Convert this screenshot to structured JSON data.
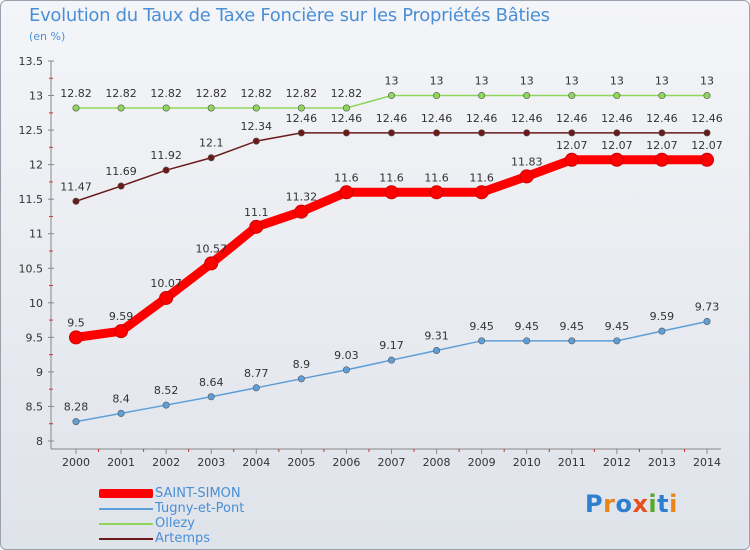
{
  "title": "Evolution du Taux de Taxe Foncière sur les Propriétés Bâties",
  "unit": "(en %)",
  "logo": "Proxiti",
  "chart_data": {
    "type": "line",
    "title": "Evolution du Taux de Taxe Foncière sur les Propriétés Bâties",
    "ylabel": "(en %)",
    "xlabel": "",
    "ylim": [
      8,
      13.5
    ],
    "yticks": [
      "8",
      "8.5",
      "9",
      "9.5",
      "10",
      "10.5",
      "11",
      "11.5",
      "12",
      "12.5",
      "13",
      "13.5"
    ],
    "x": [
      "2000",
      "2001",
      "2002",
      "2003",
      "2004",
      "2005",
      "2006",
      "2007",
      "2008",
      "2009",
      "2010",
      "2011",
      "2012",
      "2013",
      "2014"
    ],
    "legend_position": "bottom-left",
    "series": [
      {
        "name": "Artemps",
        "color": "#6b1a1a",
        "values": [
          11.47,
          11.69,
          11.92,
          12.1,
          12.34,
          12.46,
          12.46,
          12.46,
          12.46,
          12.46,
          12.46,
          12.46,
          12.46,
          12.46,
          12.46
        ],
        "labels": [
          "11.47",
          "11.69",
          "11.92",
          "12.1",
          "12.34",
          "12.46",
          "12.46",
          "12.46",
          "12.46",
          "12.46",
          "12.46",
          "12.46",
          "12.46",
          "12.46",
          "12.46"
        ]
      },
      {
        "name": "Ollezy",
        "color": "#8fd65a",
        "values": [
          12.82,
          12.82,
          12.82,
          12.82,
          12.82,
          12.82,
          12.82,
          13,
          13,
          13,
          13,
          13,
          13,
          13,
          13
        ],
        "labels": [
          "12.82",
          "12.82",
          "12.82",
          "12.82",
          "12.82",
          "12.82",
          "12.82",
          "13",
          "13",
          "13",
          "13",
          "13",
          "13",
          "13",
          "13"
        ]
      },
      {
        "name": "Tugny-et-Pont",
        "color": "#5f9fd8",
        "values": [
          8.28,
          8.4,
          8.52,
          8.64,
          8.77,
          8.9,
          9.03,
          9.17,
          9.31,
          9.45,
          9.45,
          9.45,
          9.45,
          9.59,
          9.73
        ],
        "labels": [
          "8.28",
          "8.4",
          "8.52",
          "8.64",
          "8.77",
          "8.9",
          "9.03",
          "9.17",
          "9.31",
          "9.45",
          "9.45",
          "9.45",
          "9.45",
          "9.59",
          "9.73"
        ]
      },
      {
        "name": "SAINT-SIMON",
        "color": "#ff0000",
        "values": [
          9.5,
          9.59,
          10.07,
          10.57,
          11.1,
          11.32,
          11.6,
          11.6,
          11.6,
          11.6,
          11.83,
          12.07,
          12.07,
          12.07,
          12.07
        ],
        "labels": [
          "9.5",
          "9.59",
          "10.07",
          "10.57",
          "11.1",
          "11.32",
          "11.6",
          "11.6",
          "11.6",
          "11.6",
          "11.83",
          "12.07",
          "12.07",
          "12.07",
          "12.07"
        ]
      }
    ],
    "legend": [
      "SAINT-SIMON",
      "Tugny-et-Pont",
      "Ollezy",
      "Artemps"
    ]
  }
}
